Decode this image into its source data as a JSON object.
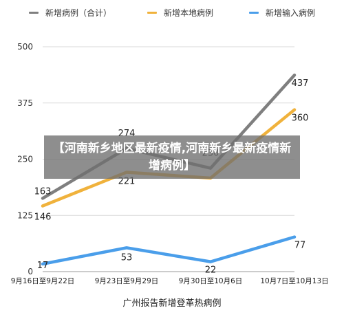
{
  "banner": {
    "text": "【河南新乡地区最新疫情,河南新乡最新疫情新增病例】"
  },
  "chart_data": {
    "type": "line",
    "title": "",
    "xlabel": "广州报告新增登革热病例",
    "ylabel": "",
    "categories": [
      "9月16日至9月22日",
      "9月23日至9月29日",
      "9月30日至10月6日",
      "10月7日至10月13日"
    ],
    "yticks": [
      "0",
      "125",
      "250",
      "375",
      "500"
    ],
    "ylim": [
      0,
      500
    ],
    "grid": true,
    "legend_position": "top",
    "series": [
      {
        "name": "新增病例（合计）",
        "color": "#7f7f7f",
        "values": [
          163,
          274,
          230,
          437
        ],
        "labels": [
          "163",
          "274",
          "230",
          "437"
        ]
      },
      {
        "name": "新增本地病例",
        "color": "#f0b23c",
        "values": [
          146,
          221,
          208,
          360
        ],
        "labels": [
          "146",
          "221",
          "",
          "360"
        ]
      },
      {
        "name": "新增输入病例",
        "color": "#4a9eea",
        "values": [
          17,
          53,
          22,
          77
        ],
        "labels": [
          "17",
          "53",
          "22",
          "77"
        ]
      }
    ]
  }
}
